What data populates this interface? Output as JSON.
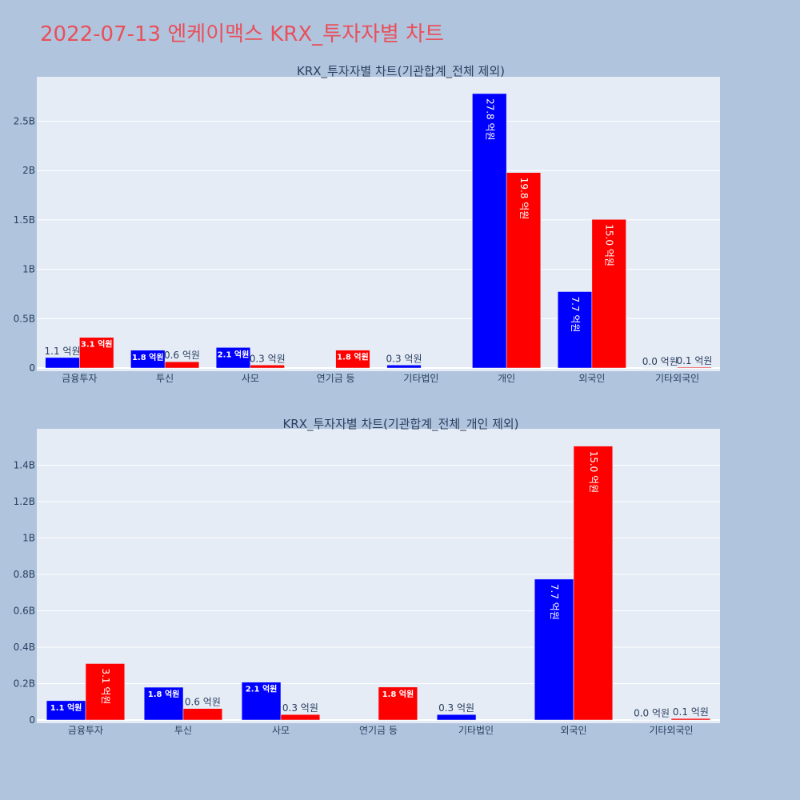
{
  "page_title": "2022-07-13 엔케이맥스 KRX_투자자별 차트",
  "colors": {
    "buy": "#0000ff",
    "sell": "#ff0000",
    "plot_bg": "#e5ecf6",
    "page_bg": "#b0c4de",
    "title": "#e8505b"
  },
  "chart_data": [
    {
      "type": "bar",
      "title": "KRX_투자자별 차트(기관합계_전체 제외)",
      "categories": [
        "금융투자",
        "투신",
        "사모",
        "연기금 등",
        "기타법인",
        "개인",
        "외국인",
        "기타외국인"
      ],
      "ylim": [
        0,
        2.95
      ],
      "yticks": [
        0,
        0.5,
        1,
        1.5,
        2,
        2.5
      ],
      "ytick_labels": [
        "0",
        "0.5B",
        "1B",
        "1.5B",
        "2B",
        "2.5B"
      ],
      "grid": true,
      "series": [
        {
          "color": "#0000ff",
          "values": [
            0.106,
            0.18,
            0.208,
            0,
            0.03,
            2.78,
            0.774,
            0.002
          ],
          "labels": [
            "1.1 억원",
            "1.8 억원",
            "2.1 억원",
            "",
            "0.3 억원",
            "27.8 억원",
            "7.7 억원",
            "0.0 억원"
          ]
        },
        {
          "color": "#ff0000",
          "values": [
            0.31,
            0.063,
            0.03,
            0.181,
            0,
            1.98,
            1.505,
            0.008
          ],
          "labels": [
            "3.1 억원",
            "0.6 억원",
            "0.3 억원",
            "1.8 억원",
            "",
            "19.8 억원",
            "15.0 억원",
            "0.1 억원"
          ]
        }
      ]
    },
    {
      "type": "bar",
      "title": "KRX_투자자별 차트(기관합계_전체_개인 제외)",
      "categories": [
        "금융투자",
        "투신",
        "사모",
        "연기금 등",
        "기타법인",
        "외국인",
        "기타외국인"
      ],
      "ylim": [
        0,
        1.6
      ],
      "yticks": [
        0,
        0.2,
        0.4,
        0.6,
        0.8,
        1,
        1.2,
        1.4
      ],
      "ytick_labels": [
        "0",
        "0.2B",
        "0.4B",
        "0.6B",
        "0.8B",
        "1B",
        "1.2B",
        "1.4B"
      ],
      "grid": true,
      "series": [
        {
          "color": "#0000ff",
          "values": [
            0.106,
            0.18,
            0.208,
            0,
            0.03,
            0.774,
            0.002
          ],
          "labels": [
            "1.1 억원",
            "1.8 억원",
            "2.1 억원",
            "",
            "0.3 억원",
            "7.7 억원",
            "0.0 억원"
          ]
        },
        {
          "color": "#ff0000",
          "values": [
            0.31,
            0.063,
            0.03,
            0.181,
            0,
            1.505,
            0.008
          ],
          "labels": [
            "3.1 억원",
            "0.6 억원",
            "0.3 억원",
            "1.8 억원",
            "",
            "15.0 억원",
            "0.1 억원"
          ]
        }
      ]
    }
  ]
}
